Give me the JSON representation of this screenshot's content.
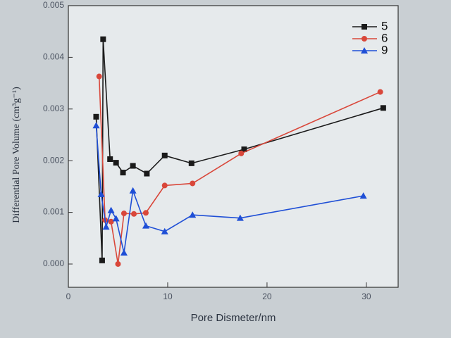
{
  "chart_data": {
    "type": "line",
    "x_label": "Pore Dismeter/nm",
    "y_label": "Differential Pore Volume (cm³g⁻¹)",
    "xlim": [
      0,
      33.2
    ],
    "ylim": [
      -0.00045,
      0.005
    ],
    "xticks": [
      0,
      10,
      20,
      30
    ],
    "yticks": [
      {
        "value": 0,
        "label": "0.000"
      },
      {
        "value": 0.001,
        "label": "0.001"
      },
      {
        "value": 0.002,
        "label": "0.002"
      },
      {
        "value": 0.003,
        "label": "0.003"
      },
      {
        "value": 0.004,
        "label": "0.004"
      },
      {
        "value": 0.005,
        "label": "0.005"
      }
    ],
    "legend": "top-right",
    "series": [
      {
        "name": "5",
        "color": "#1a1a1a",
        "marker": "square",
        "x": [
          2.8,
          3.4,
          3.5,
          4.2,
          4.8,
          5.5,
          6.5,
          7.9,
          9.7,
          12.4,
          17.7,
          31.7
        ],
        "values": [
          0.00285,
          7e-05,
          0.00435,
          0.00203,
          0.00196,
          0.00177,
          0.0019,
          0.00175,
          0.0021,
          0.00195,
          0.00222,
          0.00302
        ]
      },
      {
        "name": "6",
        "color": "#d9473a",
        "marker": "circle",
        "x": [
          3.1,
          3.7,
          4.3,
          5.0,
          5.6,
          6.6,
          7.8,
          9.7,
          12.5,
          17.4,
          31.4
        ],
        "values": [
          0.00363,
          0.00085,
          0.00082,
          0.0,
          0.00098,
          0.00097,
          0.00099,
          0.00152,
          0.00156,
          0.00214,
          0.00333
        ]
      },
      {
        "name": "9",
        "color": "#1f4fd6",
        "marker": "triangle",
        "x": [
          2.8,
          3.3,
          3.8,
          4.3,
          4.8,
          5.6,
          6.5,
          7.8,
          9.7,
          12.5,
          17.3,
          29.7
        ],
        "values": [
          0.00268,
          0.00135,
          0.00072,
          0.00104,
          0.00088,
          0.00022,
          0.00142,
          0.00074,
          0.00063,
          0.00095,
          0.00089,
          0.00132
        ]
      }
    ]
  }
}
